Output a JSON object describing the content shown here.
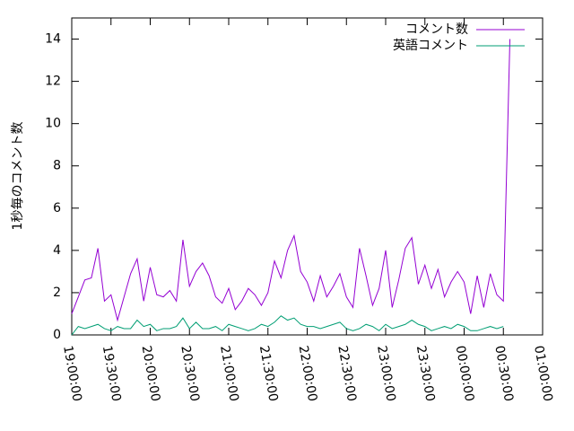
{
  "chart_data": {
    "type": "line",
    "ylabel": "1秒毎のコメント数",
    "x": [
      "19:00:00",
      "19:05:00",
      "19:10:00",
      "19:15:00",
      "19:20:00",
      "19:25:00",
      "19:30:00",
      "19:35:00",
      "19:40:00",
      "19:45:00",
      "19:50:00",
      "19:55:00",
      "20:00:00",
      "20:05:00",
      "20:10:00",
      "20:15:00",
      "20:20:00",
      "20:25:00",
      "20:30:00",
      "20:35:00",
      "20:40:00",
      "20:45:00",
      "20:50:00",
      "20:55:00",
      "21:00:00",
      "21:05:00",
      "21:10:00",
      "21:15:00",
      "21:20:00",
      "21:25:00",
      "21:30:00",
      "21:35:00",
      "21:40:00",
      "21:45:00",
      "21:50:00",
      "21:55:00",
      "22:00:00",
      "22:05:00",
      "22:10:00",
      "22:15:00",
      "22:20:00",
      "22:25:00",
      "22:30:00",
      "22:35:00",
      "22:40:00",
      "22:45:00",
      "22:50:00",
      "22:55:00",
      "23:00:00",
      "23:05:00",
      "23:10:00",
      "23:15:00",
      "23:20:00",
      "23:25:00",
      "23:30:00",
      "23:35:00",
      "23:40:00",
      "23:45:00",
      "23:50:00",
      "23:55:00",
      "00:00:00",
      "00:05:00",
      "00:10:00",
      "00:15:00",
      "00:20:00",
      "00:25:00",
      "00:30:00",
      "00:35:00"
    ],
    "series": [
      {
        "name": "コメント数",
        "color": "#9400d3",
        "values": [
          1.0,
          1.8,
          2.6,
          2.7,
          4.1,
          1.6,
          1.9,
          0.7,
          1.8,
          2.9,
          3.6,
          1.6,
          3.2,
          1.9,
          1.8,
          2.1,
          1.6,
          4.5,
          2.3,
          3.0,
          3.4,
          2.8,
          1.8,
          1.5,
          2.2,
          1.2,
          1.6,
          2.2,
          1.9,
          1.4,
          2.0,
          3.5,
          2.7,
          4.0,
          4.7,
          3.0,
          2.5,
          1.6,
          2.8,
          1.8,
          2.3,
          2.9,
          1.8,
          1.3,
          4.1,
          2.8,
          1.4,
          2.2,
          4.0,
          1.3,
          2.6,
          4.1,
          4.6,
          2.4,
          3.3,
          2.2,
          3.1,
          1.8,
          2.5,
          3.0,
          2.5,
          1.0,
          2.8,
          1.3,
          2.9,
          1.9,
          1.6,
          14.0
        ]
      },
      {
        "name": "英語コメント",
        "color": "#009e73",
        "values": [
          0.0,
          0.4,
          0.3,
          0.4,
          0.5,
          0.3,
          0.2,
          0.4,
          0.3,
          0.3,
          0.7,
          0.4,
          0.5,
          0.2,
          0.3,
          0.3,
          0.4,
          0.8,
          0.3,
          0.6,
          0.3,
          0.3,
          0.4,
          0.2,
          0.5,
          0.4,
          0.3,
          0.2,
          0.3,
          0.5,
          0.4,
          0.6,
          0.9,
          0.7,
          0.8,
          0.5,
          0.4,
          0.4,
          0.3,
          0.4,
          0.5,
          0.6,
          0.3,
          0.2,
          0.3,
          0.5,
          0.4,
          0.2,
          0.5,
          0.3,
          0.4,
          0.5,
          0.7,
          0.5,
          0.4,
          0.2,
          0.3,
          0.4,
          0.3,
          0.5,
          0.4,
          0.2,
          0.2,
          0.3,
          0.4,
          0.3,
          0.4,
          null
        ]
      }
    ],
    "xlim": [
      "19:00:00",
      "01:00:00"
    ],
    "xticks": [
      "19:00:00",
      "19:30:00",
      "20:00:00",
      "20:30:00",
      "21:00:00",
      "21:30:00",
      "22:00:00",
      "22:30:00",
      "23:00:00",
      "23:30:00",
      "00:00:00",
      "00:30:00",
      "01:00:00"
    ],
    "ylim": [
      0,
      15
    ],
    "yticks": [
      0,
      2,
      4,
      6,
      8,
      10,
      12,
      14
    ],
    "legend": "upper right"
  }
}
